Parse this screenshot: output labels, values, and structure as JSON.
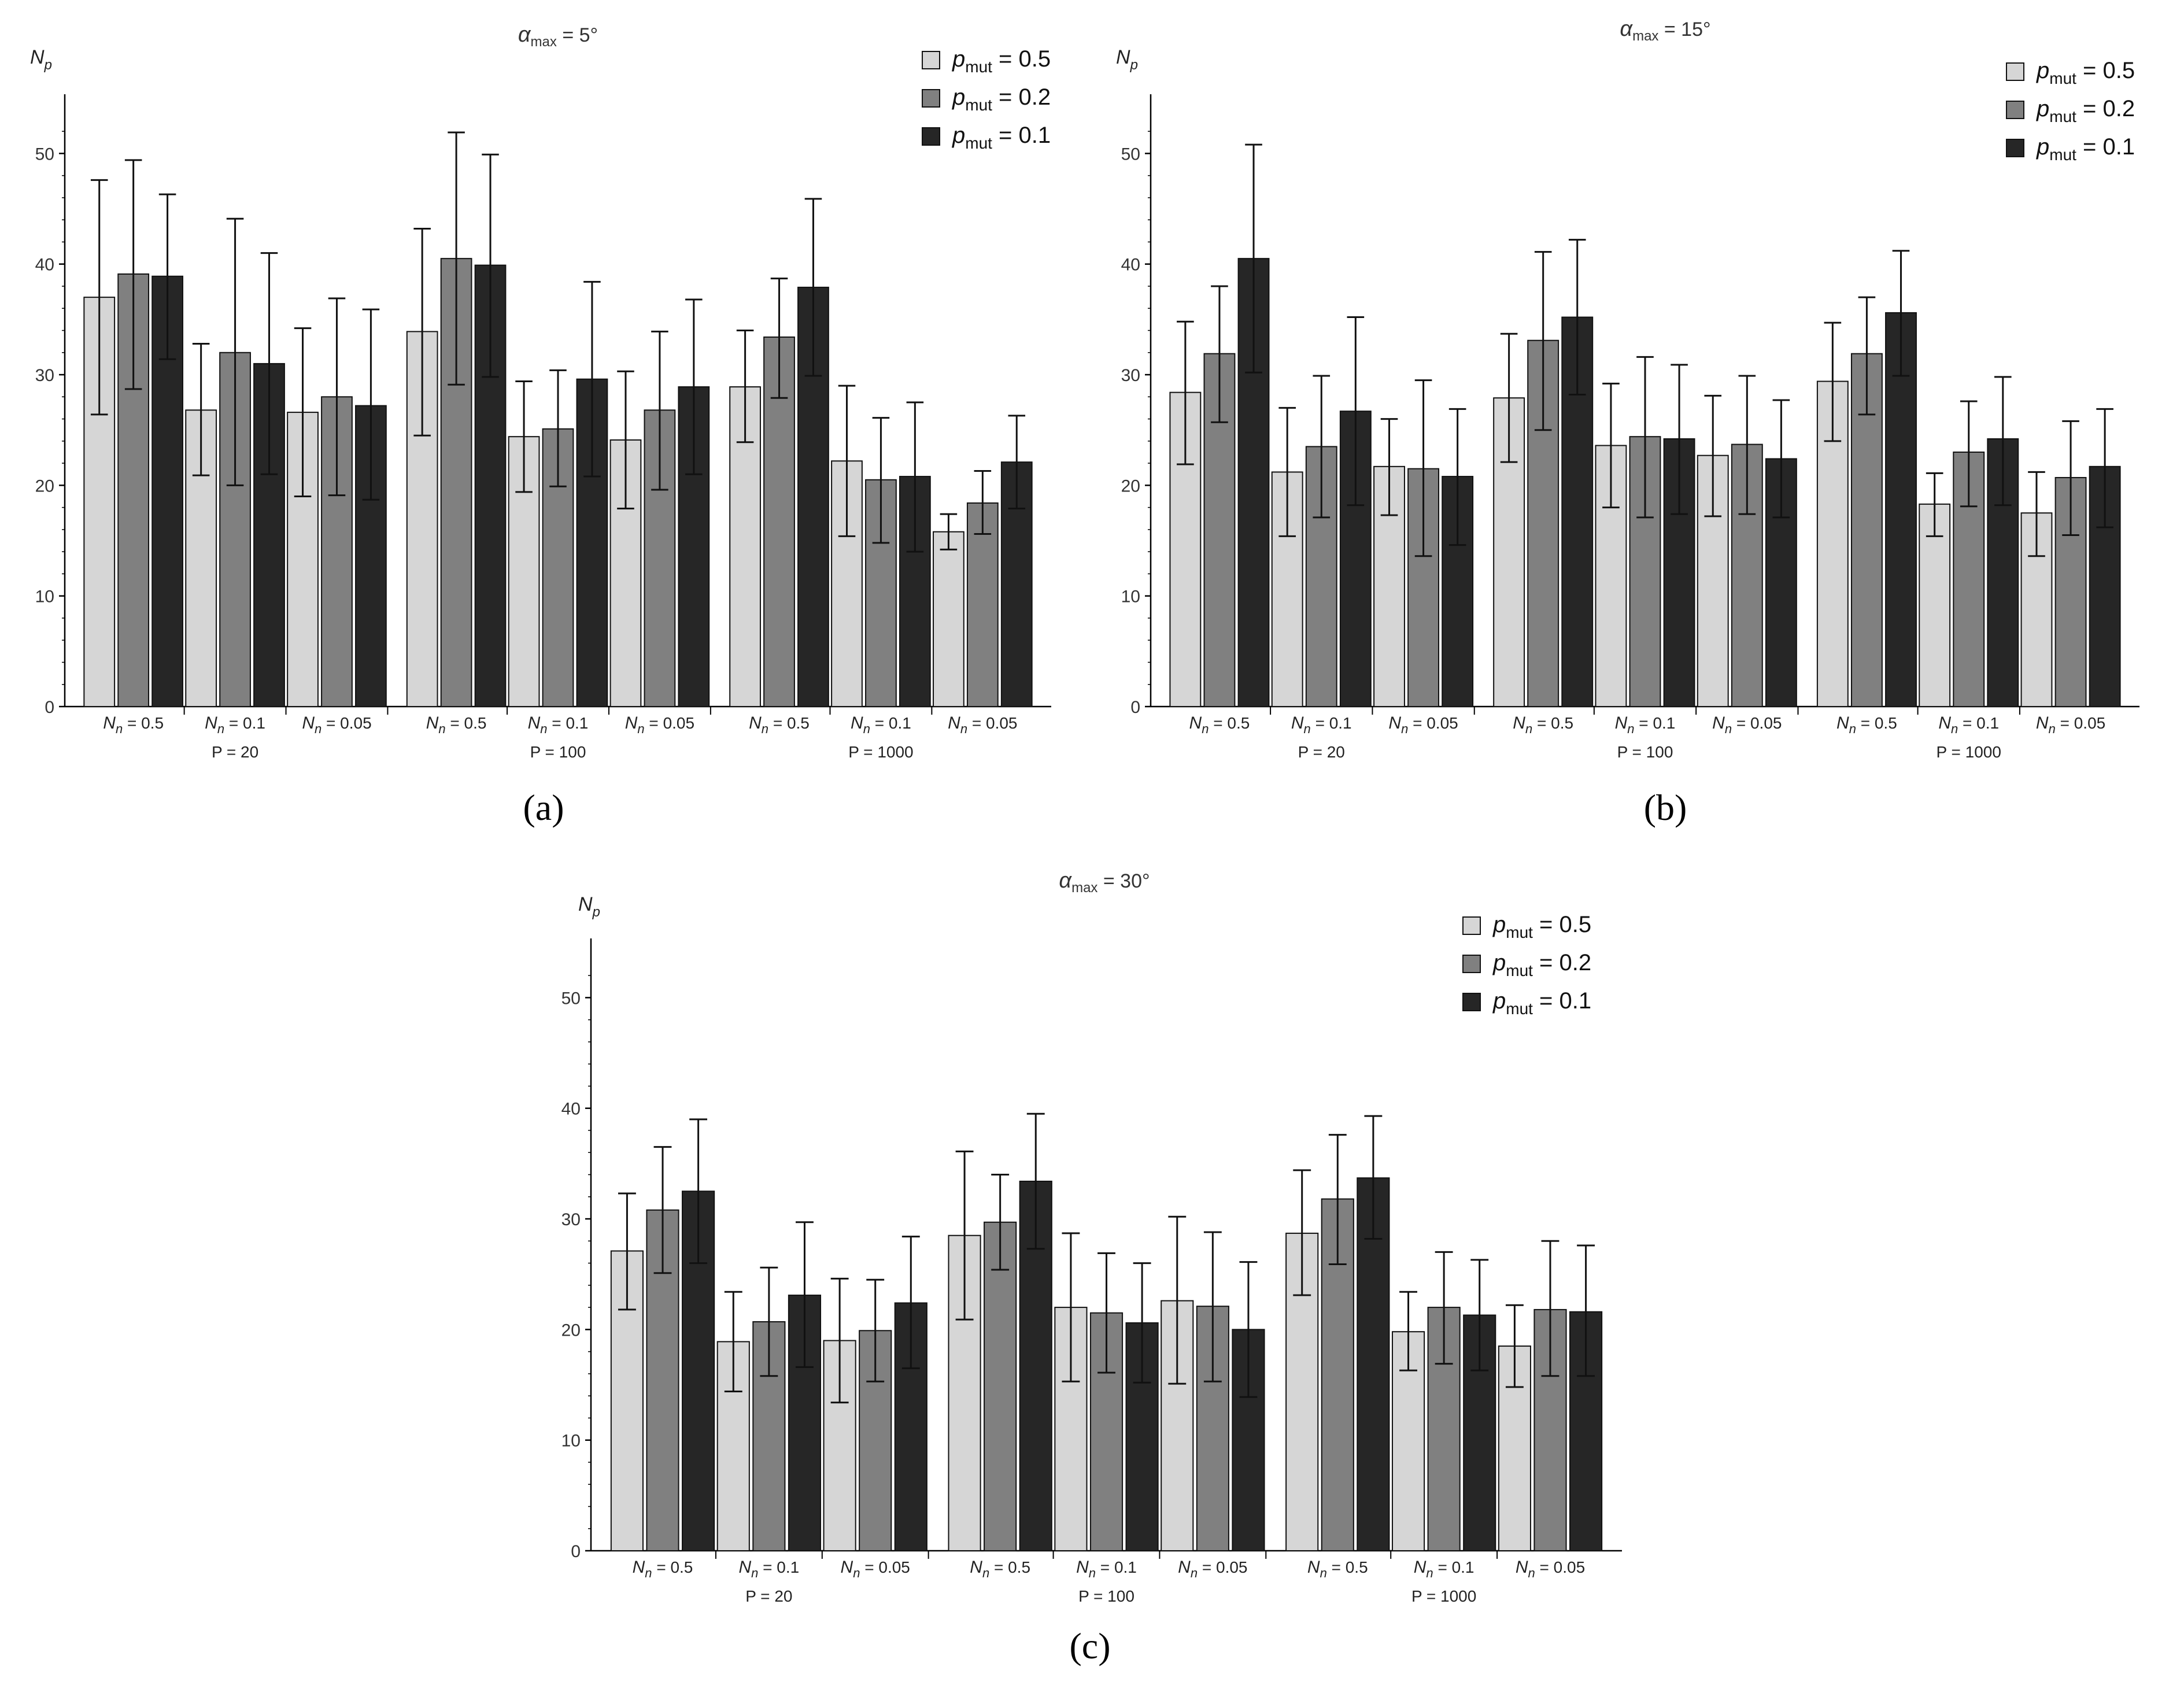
{
  "figure": {
    "captions": [
      "(a)",
      "(b)",
      "(c)"
    ]
  },
  "colors": {
    "p05": "#d6d6d6",
    "p02": "#808080",
    "p01": "#262626",
    "axis": "#000000"
  },
  "chart_data": [
    {
      "type": "bar",
      "title": "αmax = 5°",
      "title_symbol": "α",
      "title_sub": "max",
      "title_rest": " = 5°",
      "ylabel": "Np",
      "ylabel_main": "N",
      "ylabel_sub": "p",
      "ylim": [
        0,
        53
      ],
      "yticks": [
        0,
        10,
        20,
        30,
        40,
        50
      ],
      "legend_position": "top-right",
      "groups": [
        {
          "label": "P = 20",
          "categories": [
            "0.5",
            "0.1",
            "0.05"
          ]
        },
        {
          "label": "P = 100",
          "categories": [
            "0.5",
            "0.1",
            "0.05"
          ]
        },
        {
          "label": "P = 1000",
          "categories": [
            "0.5",
            "0.1",
            "0.05"
          ]
        }
      ],
      "category_prefix_main": "N",
      "category_prefix_sub": "n",
      "series": [
        {
          "name": "pmut = 0.5",
          "legend_sub": "mut",
          "legend_value": "0.5",
          "color_key": "p05",
          "values": [
            37,
            26.8,
            26.6,
            33.9,
            24.4,
            24.1,
            28.9,
            22.2,
            15.8
          ],
          "err_low": [
            26.4,
            20.9,
            19.0,
            24.5,
            19.4,
            17.9,
            23.9,
            15.4,
            14.2
          ],
          "err_high": [
            47.6,
            32.8,
            34.2,
            43.2,
            29.4,
            30.3,
            34.0,
            29.0,
            17.4
          ]
        },
        {
          "name": "pmut = 0.2",
          "legend_sub": "mut",
          "legend_value": "0.2",
          "color_key": "p02",
          "values": [
            39.1,
            32,
            28,
            40.5,
            25.1,
            26.8,
            33.4,
            20.5,
            18.4
          ],
          "err_low": [
            28.7,
            20.0,
            19.1,
            29.1,
            19.9,
            19.6,
            27.9,
            14.8,
            15.6
          ],
          "err_high": [
            49.4,
            44.1,
            36.9,
            51.9,
            30.4,
            33.9,
            38.7,
            26.1,
            21.3
          ]
        },
        {
          "name": "pmut = 0.1",
          "legend_sub": "mut",
          "legend_value": "0.1",
          "color_key": "p01",
          "values": [
            38.9,
            31,
            27.2,
            39.9,
            29.6,
            28.9,
            37.9,
            20.8,
            22.1
          ],
          "err_low": [
            31.4,
            21.0,
            18.7,
            29.8,
            20.8,
            21.0,
            29.9,
            14.0,
            17.9
          ],
          "err_high": [
            46.3,
            41.0,
            35.9,
            49.9,
            38.4,
            36.8,
            45.9,
            27.5,
            26.3
          ]
        }
      ]
    },
    {
      "type": "bar",
      "title": "αmax = 15°",
      "title_symbol": "α",
      "title_sub": "max",
      "title_rest": " = 15°",
      "ylabel": "Np",
      "ylabel_main": "N",
      "ylabel_sub": "p",
      "ylim": [
        0,
        53
      ],
      "yticks": [
        0,
        10,
        20,
        30,
        40,
        50
      ],
      "legend_position": "top-right",
      "groups": [
        {
          "label": "P = 20",
          "categories": [
            "0.5",
            "0.1",
            "0.05"
          ]
        },
        {
          "label": "P = 100",
          "categories": [
            "0.5",
            "0.1",
            "0.05"
          ]
        },
        {
          "label": "P = 1000",
          "categories": [
            "0.5",
            "0.1",
            "0.05"
          ]
        }
      ],
      "category_prefix_main": "N",
      "category_prefix_sub": "n",
      "series": [
        {
          "name": "pmut = 0.5",
          "legend_sub": "mut",
          "legend_value": "0.5",
          "color_key": "p05",
          "values": [
            28.4,
            21.2,
            21.7,
            27.9,
            23.6,
            22.7,
            29.4,
            18.3,
            17.5
          ],
          "err_low": [
            21.9,
            15.4,
            17.3,
            22.1,
            18.0,
            17.2,
            24.0,
            15.4,
            13.6
          ],
          "err_high": [
            34.8,
            27.0,
            26.0,
            33.7,
            29.2,
            28.1,
            34.7,
            21.1,
            21.2
          ]
        },
        {
          "name": "pmut = 0.2",
          "legend_sub": "mut",
          "legend_value": "0.2",
          "color_key": "p02",
          "values": [
            31.9,
            23.5,
            21.5,
            33.1,
            24.4,
            23.7,
            31.9,
            23,
            20.7
          ],
          "err_low": [
            25.7,
            17.1,
            13.6,
            25.0,
            17.1,
            17.4,
            26.4,
            18.1,
            15.5
          ],
          "err_high": [
            38.0,
            29.9,
            29.5,
            41.1,
            31.6,
            29.9,
            37.0,
            27.6,
            25.8
          ]
        },
        {
          "name": "pmut = 0.1",
          "legend_sub": "mut",
          "legend_value": "0.1",
          "color_key": "p01",
          "values": [
            40.5,
            26.7,
            20.8,
            35.2,
            24.2,
            22.4,
            35.6,
            24.2,
            21.7
          ],
          "err_low": [
            30.2,
            18.2,
            14.6,
            28.2,
            17.4,
            17.1,
            29.9,
            18.2,
            16.2
          ],
          "err_high": [
            50.8,
            35.2,
            26.9,
            42.2,
            30.9,
            27.7,
            41.2,
            29.8,
            26.9
          ]
        }
      ]
    },
    {
      "type": "bar",
      "title": "αmax = 30°",
      "title_symbol": "α",
      "title_sub": "max",
      "title_rest": " = 30°",
      "ylabel": "Np",
      "ylabel_main": "N",
      "ylabel_sub": "p",
      "ylim": [
        0,
        53
      ],
      "yticks": [
        0,
        10,
        20,
        30,
        40,
        50
      ],
      "legend_position": "top-right",
      "groups": [
        {
          "label": "P = 20",
          "categories": [
            "0.5",
            "0.1",
            "0.05"
          ]
        },
        {
          "label": "P = 100",
          "categories": [
            "0.5",
            "0.1",
            "0.05"
          ]
        },
        {
          "label": "P = 1000",
          "categories": [
            "0.5",
            "0.1",
            "0.05"
          ]
        }
      ],
      "category_prefix_main": "N",
      "category_prefix_sub": "n",
      "series": [
        {
          "name": "pmut = 0.5",
          "legend_sub": "mut",
          "legend_value": "0.5",
          "color_key": "p05",
          "values": [
            27.1,
            18.9,
            19,
            28.5,
            22,
            22.6,
            28.7,
            19.8,
            18.5
          ],
          "err_low": [
            21.8,
            14.4,
            13.4,
            20.9,
            15.3,
            15.1,
            23.1,
            16.3,
            14.8
          ],
          "err_high": [
            32.3,
            23.4,
            24.6,
            36.1,
            28.7,
            30.2,
            34.4,
            23.4,
            22.2
          ]
        },
        {
          "name": "pmut = 0.2",
          "legend_sub": "mut",
          "legend_value": "0.2",
          "color_key": "p02",
          "values": [
            30.8,
            20.7,
            19.9,
            29.7,
            21.5,
            22.1,
            31.8,
            22,
            21.8
          ],
          "err_low": [
            25.1,
            15.8,
            15.3,
            25.4,
            16.1,
            15.3,
            25.9,
            16.9,
            15.8
          ],
          "err_high": [
            36.5,
            25.6,
            24.5,
            34.0,
            26.9,
            28.8,
            37.6,
            27.0,
            28.0
          ]
        },
        {
          "name": "pmut = 0.1",
          "legend_sub": "mut",
          "legend_value": "0.1",
          "color_key": "p01",
          "values": [
            32.5,
            23.1,
            22.4,
            33.4,
            20.6,
            20,
            33.7,
            21.3,
            21.6
          ],
          "err_low": [
            26.0,
            16.6,
            16.5,
            27.3,
            15.2,
            13.9,
            28.2,
            16.3,
            15.8
          ],
          "err_high": [
            39.0,
            29.7,
            28.4,
            39.5,
            26.0,
            26.1,
            39.3,
            26.3,
            27.6
          ]
        }
      ]
    }
  ]
}
